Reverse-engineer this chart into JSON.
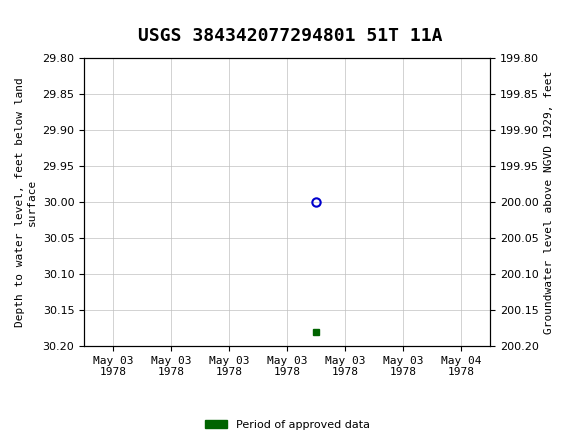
{
  "title": "USGS 384342077294801 51T 11A",
  "left_ylabel": "Depth to water level, feet below land\nsurface",
  "right_ylabel": "Groundwater level above NGVD 1929, feet",
  "ylim_left": [
    29.8,
    30.2
  ],
  "ylim_right": [
    199.8,
    200.2
  ],
  "left_yticks": [
    29.8,
    29.85,
    29.9,
    29.95,
    30.0,
    30.05,
    30.1,
    30.15,
    30.2
  ],
  "right_yticks": [
    200.2,
    200.15,
    200.1,
    200.05,
    200.0,
    199.95,
    199.9,
    199.85,
    199.8
  ],
  "data_point_x": 3.5,
  "data_point_y": 30.0,
  "green_point_x": 3.5,
  "green_point_y": 30.18,
  "xlabel_ticks": [
    "May 03\n1978",
    "May 03\n1978",
    "May 03\n1978",
    "May 03\n1978",
    "May 03\n1978",
    "May 03\n1978",
    "May 04\n1978"
  ],
  "xtick_positions": [
    0,
    1,
    2,
    3,
    4,
    5,
    6
  ],
  "legend_label": "Period of approved data",
  "legend_color": "#006400",
  "header_bg_color": "#006400",
  "header_text_color": "#ffffff",
  "plot_bg_color": "#ffffff",
  "grid_color": "#c0c0c0",
  "marker_color": "#0000cd",
  "title_fontsize": 13,
  "tick_fontsize": 8,
  "label_fontsize": 8,
  "monospace_font": "DejaVu Sans Mono"
}
